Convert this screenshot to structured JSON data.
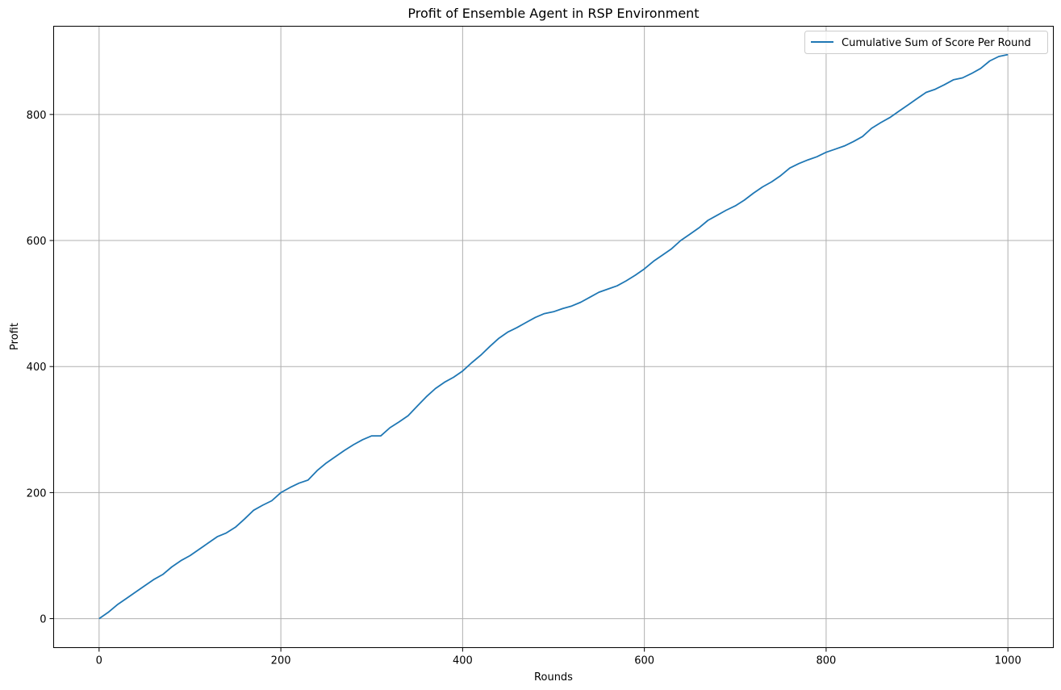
{
  "chart_data": {
    "type": "line",
    "title": "Profit of Ensemble Agent in RSP Environment",
    "xlabel": "Rounds",
    "ylabel": "Profit",
    "xlim": [
      -50,
      1050
    ],
    "ylim": [
      -46,
      940
    ],
    "xticks": [
      0,
      200,
      400,
      600,
      800,
      1000
    ],
    "yticks": [
      0,
      200,
      400,
      600,
      800
    ],
    "grid": true,
    "legend_position": "upper right",
    "series": [
      {
        "name": "Cumulative Sum of Score Per Round",
        "color": "#1f77b4",
        "x": [
          0,
          10,
          20,
          30,
          40,
          50,
          60,
          70,
          80,
          90,
          100,
          110,
          120,
          130,
          140,
          150,
          160,
          170,
          180,
          190,
          200,
          210,
          220,
          230,
          240,
          250,
          260,
          270,
          280,
          290,
          300,
          310,
          320,
          330,
          340,
          350,
          360,
          370,
          380,
          390,
          400,
          410,
          420,
          430,
          440,
          450,
          460,
          470,
          480,
          490,
          500,
          510,
          520,
          530,
          540,
          550,
          560,
          570,
          580,
          590,
          600,
          610,
          620,
          630,
          640,
          650,
          660,
          670,
          680,
          690,
          700,
          710,
          720,
          730,
          740,
          750,
          760,
          770,
          780,
          790,
          800,
          810,
          820,
          830,
          840,
          850,
          860,
          870,
          880,
          890,
          900,
          910,
          920,
          930,
          940,
          950,
          960,
          970,
          980,
          990,
          1000
        ],
        "y": [
          0,
          10,
          22,
          32,
          42,
          52,
          62,
          70,
          82,
          92,
          100,
          110,
          120,
          130,
          136,
          145,
          158,
          172,
          180,
          187,
          200,
          208,
          215,
          220,
          235,
          247,
          257,
          267,
          276,
          284,
          290,
          290,
          303,
          312,
          322,
          337,
          352,
          365,
          375,
          383,
          393,
          406,
          418,
          432,
          445,
          455,
          462,
          470,
          478,
          484,
          487,
          492,
          496,
          502,
          510,
          518,
          523,
          528,
          536,
          545,
          555,
          567,
          577,
          587,
          600,
          610,
          620,
          632,
          640,
          648,
          655,
          664,
          675,
          685,
          693,
          703,
          715,
          722,
          728,
          733,
          740,
          745,
          750,
          757,
          765,
          778,
          787,
          795,
          805,
          815,
          825,
          835,
          840,
          847,
          855,
          858,
          865,
          873,
          885,
          892,
          895
        ]
      }
    ]
  }
}
